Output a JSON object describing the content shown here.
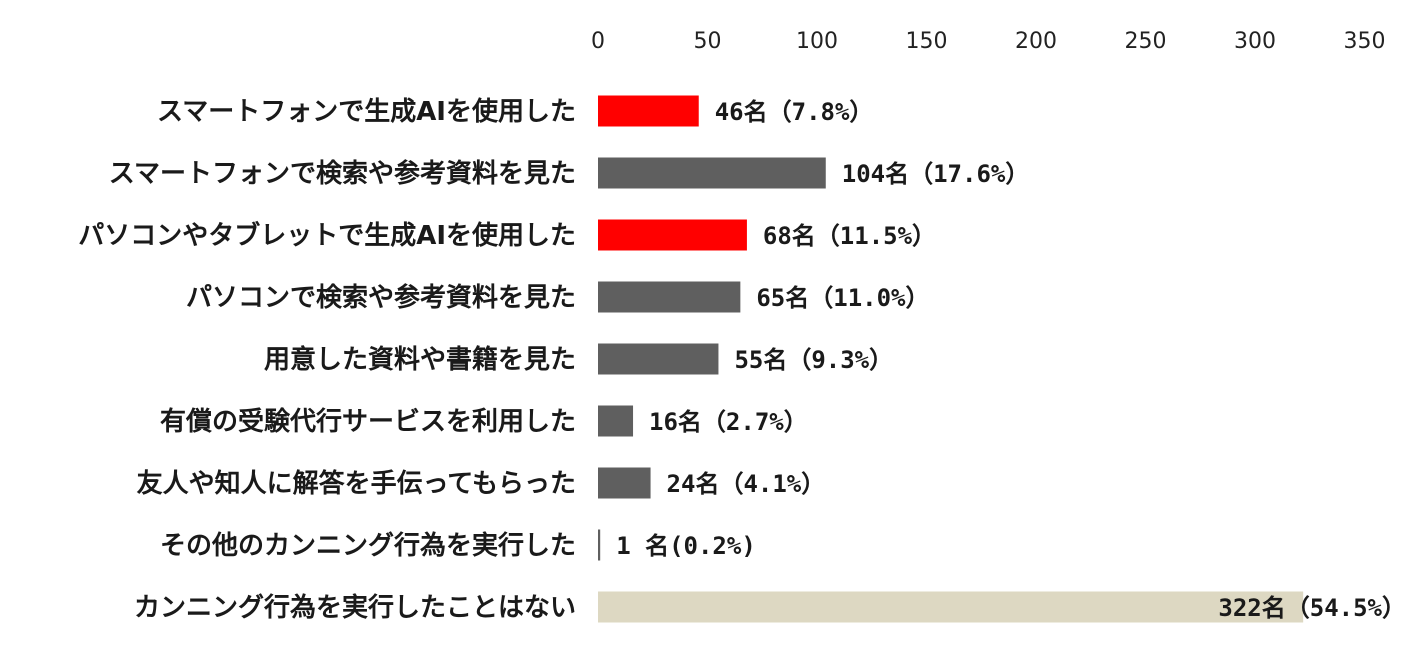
{
  "chart_data": {
    "type": "bar",
    "orientation": "horizontal",
    "title": "",
    "xlabel": "",
    "ylabel": "",
    "xlim": [
      0,
      350
    ],
    "ticks": [
      "0",
      "50",
      "100",
      "150",
      "200",
      "250",
      "300",
      "350"
    ],
    "tick_values": [
      0,
      50,
      100,
      150,
      200,
      250,
      300,
      350
    ],
    "grid": false,
    "legend": "none",
    "categories": [
      "スマートフォンで生成AIを使用した",
      "スマートフォンで検索や参考資料を見た",
      "パソコンやタブレットで生成AIを使用した",
      "パソコンで検索や参考資料を見た",
      "用意した資料や書籍を見た",
      "有償の受験代行サービスを利用した",
      "友人や知人に解答を手伝ってもらった",
      "その他のカンニング行為を実行した",
      "カンニング行為を実行したことはない"
    ],
    "values": [
      46,
      104,
      68,
      65,
      55,
      16,
      24,
      1,
      322
    ],
    "data_labels": [
      "46名（7.8%）",
      "104名（17.6%）",
      "68名（11.5%）",
      "65名（11.0%）",
      "55名（9.3%）",
      "16名（2.7%）",
      "24名（4.1%）",
      "1 名(0.2%)",
      "322名（54.5%）"
    ],
    "bar_colors": [
      "#ff0000",
      "#5f5f5f",
      "#ff0000",
      "#5f5f5f",
      "#5f5f5f",
      "#5f5f5f",
      "#5f5f5f",
      "#5f5f5f",
      "#ddd8c2"
    ]
  }
}
